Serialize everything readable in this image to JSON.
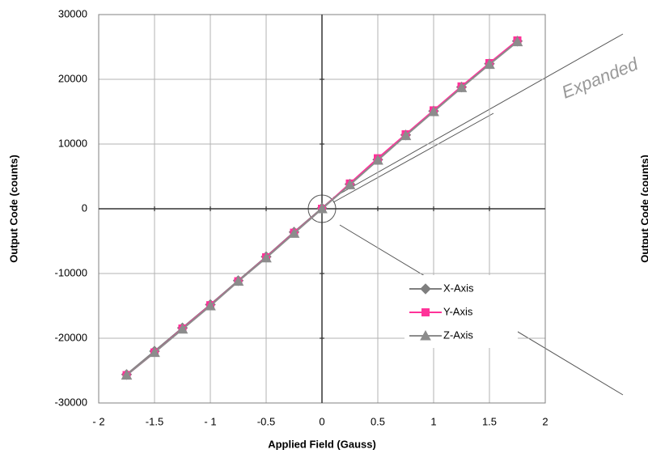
{
  "chart_data": {
    "type": "line",
    "x_label": "Applied  Field  (Gauss)",
    "y_label": "Output  Code  (counts)",
    "x": [
      -1.75,
      -1.5,
      -1.25,
      -1,
      -0.75,
      -0.5,
      -0.25,
      0,
      0.25,
      0.5,
      0.75,
      1,
      1.25,
      1.5,
      1.75
    ],
    "series": [
      {
        "name": "X-Axis",
        "color": "#7f7f7f",
        "marker": "diamond",
        "values": [
          -25600,
          -22000,
          -18400,
          -14800,
          -11100,
          -7400,
          -3600,
          100,
          3800,
          7600,
          11400,
          15100,
          18800,
          22400,
          25900
        ]
      },
      {
        "name": "Y-Axis",
        "color": "#ff3399",
        "marker": "square",
        "values": [
          -25700,
          -22200,
          -18500,
          -14900,
          -11200,
          -7500,
          -3700,
          0,
          3900,
          7800,
          11500,
          15200,
          18900,
          22500,
          26000
        ]
      },
      {
        "name": "Z-Axis",
        "color": "#8c8c8c",
        "marker": "triangle",
        "values": [
          -25700,
          -22200,
          -18600,
          -15000,
          -11200,
          -7600,
          -3800,
          0,
          3700,
          7500,
          11300,
          15000,
          18700,
          22300,
          25800
        ]
      }
    ],
    "xlim": [
      -2,
      2
    ],
    "xticks": [
      {
        "value": -2,
        "label": "- 2"
      },
      -1.5,
      {
        "value": -1,
        "label": "- 1"
      },
      -0.5,
      0,
      0.5,
      1,
      1.5,
      2
    ],
    "ylim": [
      -30000,
      30000
    ],
    "yticks": [
      -30000,
      -20000,
      -10000,
      0,
      10000,
      20000,
      30000
    ],
    "grid": true,
    "legend": "lower right",
    "annotations": [
      "Expanded",
      "Output  Code  (counts)"
    ]
  }
}
